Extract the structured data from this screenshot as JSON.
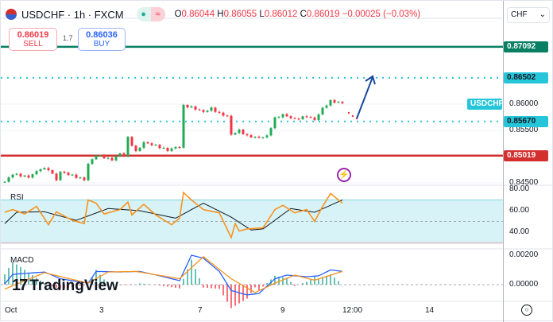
{
  "header": {
    "symbol": "USDCHF · 1h · FXCM",
    "open": "0.86044",
    "high": "0.86055",
    "low": "0.86012",
    "close": "0.86019",
    "change": "−0.00025 (−0.03%)",
    "o_label": "O",
    "h_label": "H",
    "l_label": "L",
    "c_label": "C"
  },
  "trade": {
    "sell_price": "0.86019",
    "sell_label": "SELL",
    "spread": "1.7",
    "buy_price": "0.86036",
    "buy_label": "BUY"
  },
  "axis": {
    "currency": "CHF",
    "price_labels": [
      "0.86000",
      "0.85500",
      "0.84500"
    ],
    "rsi_labels": [
      "80.00",
      "60.00",
      "40.00"
    ],
    "macd_labels": [
      "0.00200",
      "0.00000"
    ],
    "time_labels": [
      "Oct",
      "3",
      "7",
      "9",
      "12:00",
      "14"
    ]
  },
  "levels": [
    {
      "value": "0.87092",
      "color": "#087f63",
      "style": "solid"
    },
    {
      "value": "0.86502",
      "color": "#26c6da",
      "style": "dotted"
    },
    {
      "value": "0.85670",
      "color": "#26c6da",
      "style": "dotted"
    },
    {
      "value": "0.85019",
      "color": "#d32f2f",
      "style": "solid"
    }
  ],
  "symbol_tag": "USDCHF",
  "panes": {
    "rsi": "RSI",
    "macd": "MACD"
  },
  "logo": "TradingView",
  "colors": {
    "up": "#26a69a",
    "up_candle": "#22ab55",
    "down": "#f23645",
    "rsi": "#f7931e",
    "signal": "#131722",
    "macd": "#2962ff",
    "arrow": "#1848a0"
  },
  "chart_data": {
    "type": "candlestick",
    "price_range": [
      0.844,
      0.8725
    ],
    "close_keypoints": [
      [
        0,
        0.8452
      ],
      [
        2,
        0.8467
      ],
      [
        6,
        0.8461
      ],
      [
        9,
        0.8477
      ],
      [
        11,
        0.8476
      ],
      [
        13,
        0.8456
      ],
      [
        14,
        0.8471
      ],
      [
        17,
        0.8464
      ],
      [
        20,
        0.8456
      ],
      [
        21,
        0.8486
      ],
      [
        23,
        0.8503
      ],
      [
        27,
        0.8494
      ],
      [
        29,
        0.8506
      ],
      [
        30,
        0.8502
      ],
      [
        31,
        0.8536
      ],
      [
        33,
        0.8509
      ],
      [
        35,
        0.8527
      ],
      [
        38,
        0.8521
      ],
      [
        41,
        0.8512
      ],
      [
        43,
        0.8518
      ],
      [
        44,
        0.8518
      ],
      [
        45,
        0.8597
      ],
      [
        47,
        0.8594
      ],
      [
        50,
        0.8585
      ],
      [
        52,
        0.8592
      ],
      [
        54,
        0.8582
      ],
      [
        56,
        0.8577
      ],
      [
        57,
        0.8542
      ],
      [
        59,
        0.855
      ],
      [
        61,
        0.8539
      ],
      [
        64,
        0.8536
      ],
      [
        66,
        0.8539
      ],
      [
        68,
        0.8573
      ],
      [
        70,
        0.858
      ],
      [
        73,
        0.8571
      ],
      [
        76,
        0.8577
      ],
      [
        78,
        0.857
      ],
      [
        80,
        0.8592
      ],
      [
        82,
        0.8606
      ],
      [
        85,
        0.8602
      ]
    ],
    "rsi": {
      "range": [
        25,
        85
      ],
      "band": [
        30,
        70
      ],
      "values": [
        [
          0,
          58.5
        ],
        [
          2,
          61
        ],
        [
          5,
          57
        ],
        [
          8,
          64
        ],
        [
          11,
          47
        ],
        [
          13,
          59
        ],
        [
          17,
          51
        ],
        [
          20,
          48
        ],
        [
          21,
          70
        ],
        [
          23,
          67
        ],
        [
          25,
          57
        ],
        [
          29,
          61
        ],
        [
          31,
          68
        ],
        [
          32,
          56
        ],
        [
          35,
          66
        ],
        [
          38,
          56
        ],
        [
          42,
          47
        ],
        [
          44,
          53
        ],
        [
          45,
          77
        ],
        [
          47,
          70
        ],
        [
          50,
          61
        ],
        [
          54,
          58
        ],
        [
          57,
          35
        ],
        [
          58,
          48
        ],
        [
          59,
          41
        ],
        [
          61,
          43
        ],
        [
          65,
          44
        ],
        [
          68,
          61
        ],
        [
          70,
          65
        ],
        [
          73,
          58
        ],
        [
          76,
          61
        ],
        [
          78,
          50
        ],
        [
          80,
          64
        ],
        [
          82,
          76
        ],
        [
          84,
          70
        ],
        [
          85,
          67
        ]
      ],
      "signal": [
        [
          0,
          48
        ],
        [
          3,
          58.5
        ],
        [
          10,
          59
        ],
        [
          18,
          51
        ],
        [
          26,
          62
        ],
        [
          34,
          60
        ],
        [
          43,
          53
        ],
        [
          50,
          67
        ],
        [
          57,
          54
        ],
        [
          62,
          42
        ],
        [
          65,
          43
        ],
        [
          72,
          62
        ],
        [
          78,
          58.5
        ],
        [
          85,
          70
        ]
      ]
    },
    "macd": {
      "range": [
        -0.0008,
        0.0022
      ],
      "macd": [
        [
          0,
          5e-05
        ],
        [
          2,
          0.0007
        ],
        [
          10,
          0.00086
        ],
        [
          14,
          0.0004
        ],
        [
          21,
          0.0001
        ],
        [
          23,
          0.0009
        ],
        [
          29,
          0.00086
        ],
        [
          34,
          0.0009
        ],
        [
          39,
          0.0006
        ],
        [
          44,
          0.00027
        ],
        [
          47,
          0.002
        ],
        [
          50,
          0.0018
        ],
        [
          54,
          0.0009
        ],
        [
          57,
          -0.0004
        ],
        [
          61,
          -0.0007
        ],
        [
          64,
          -0.0006
        ],
        [
          68,
          0.0004
        ],
        [
          71,
          0.00065
        ],
        [
          76,
          0.00054
        ],
        [
          79,
          0.0006
        ],
        [
          82,
          0.001
        ],
        [
          85,
          0.0009
        ]
      ],
      "signal": [
        [
          0,
          -0.0003
        ],
        [
          10,
          0.00081
        ],
        [
          21,
          0.0001
        ],
        [
          26,
          0.00086
        ],
        [
          33,
          0.0009
        ],
        [
          44,
          0.0004
        ],
        [
          50,
          0.0019
        ],
        [
          57,
          0.0004
        ],
        [
          63,
          -0.00054
        ],
        [
          68,
          0.0001
        ],
        [
          73,
          0.00065
        ],
        [
          78,
          0.0003
        ],
        [
          85,
          0.0009
        ]
      ]
    }
  }
}
